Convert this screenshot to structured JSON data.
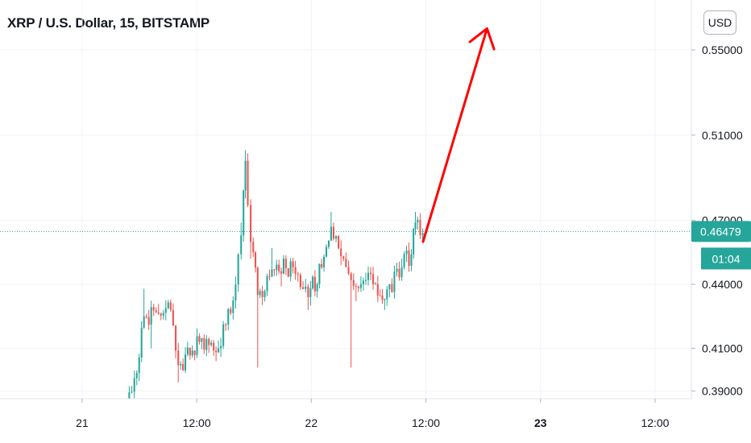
{
  "header": {
    "title": "XRP / U.S. Dollar, 15, BITSTAMP",
    "currency_button": "USD"
  },
  "colors": {
    "up": "#26a69a",
    "down": "#ef5350",
    "arrow": "#ff0000",
    "grid": "#f0f3fa",
    "axis_text": "#131722"
  },
  "chart_data": {
    "type": "candlestick",
    "title": "XRP / U.S. Dollar, 15, BITSTAMP",
    "symbol": "XRP",
    "quote": "U.S. Dollar",
    "interval": "15",
    "exchange": "BITSTAMP",
    "currency": "USD",
    "grid": true,
    "y_axis": {
      "position": "right",
      "ylim": [
        0.385,
        0.57
      ],
      "tick_labels": [
        "0.55000",
        "0.51000",
        "0.47000",
        "0.44000",
        "0.41000",
        "0.39000"
      ],
      "tick_values": [
        0.55,
        0.51,
        0.47,
        0.44,
        0.41,
        0.39
      ]
    },
    "x_axis": {
      "tick_labels": [
        "21",
        "12:00",
        "22",
        "12:00",
        "23",
        "12:00"
      ],
      "tick_values": [
        0,
        12,
        24,
        36,
        48,
        60
      ],
      "xlim": [
        -8.6,
        63.8
      ],
      "unit": "hours since day 21 00:00"
    },
    "last_price": {
      "value": 0.46479,
      "label": "0.46479"
    },
    "countdown": {
      "label": "01:04"
    },
    "segments": [
      {
        "t0": 4.8,
        "t1": 5.6,
        "open": 0.386,
        "close": 0.396,
        "high": 0.398,
        "low": 0.385
      },
      {
        "t0": 5.6,
        "t1": 6.6,
        "open": 0.396,
        "close": 0.425,
        "high": 0.438,
        "low": 0.393
      },
      {
        "t0": 6.6,
        "t1": 9.4,
        "open": 0.425,
        "close": 0.428,
        "high": 0.432,
        "low": 0.41
      },
      {
        "t0": 9.4,
        "t1": 10.2,
        "open": 0.428,
        "close": 0.402,
        "high": 0.429,
        "low": 0.394
      },
      {
        "t0": 10.2,
        "t1": 12.4,
        "open": 0.402,
        "close": 0.413,
        "high": 0.417,
        "low": 0.399
      },
      {
        "t0": 12.4,
        "t1": 14.4,
        "open": 0.413,
        "close": 0.41,
        "high": 0.416,
        "low": 0.404
      },
      {
        "t0": 14.4,
        "t1": 16.2,
        "open": 0.41,
        "close": 0.44,
        "high": 0.443,
        "low": 0.406
      },
      {
        "t0": 16.2,
        "t1": 16.8,
        "open": 0.44,
        "close": 0.463,
        "high": 0.469,
        "low": 0.437
      },
      {
        "t0": 16.8,
        "t1": 17.2,
        "open": 0.463,
        "close": 0.498,
        "high": 0.503,
        "low": 0.46
      },
      {
        "t0": 17.2,
        "t1": 17.8,
        "open": 0.498,
        "close": 0.46,
        "high": 0.501,
        "low": 0.452
      },
      {
        "t0": 17.8,
        "t1": 18.5,
        "open": 0.46,
        "close": 0.435,
        "high": 0.462,
        "low": 0.401
      },
      {
        "t0": 18.5,
        "t1": 20.0,
        "open": 0.435,
        "close": 0.447,
        "high": 0.457,
        "low": 0.432
      },
      {
        "t0": 20.0,
        "t1": 22.2,
        "open": 0.447,
        "close": 0.448,
        "high": 0.452,
        "low": 0.439
      },
      {
        "t0": 22.2,
        "t1": 23.8,
        "open": 0.448,
        "close": 0.434,
        "high": 0.449,
        "low": 0.428
      },
      {
        "t0": 23.8,
        "t1": 25.2,
        "open": 0.434,
        "close": 0.448,
        "high": 0.452,
        "low": 0.43
      },
      {
        "t0": 25.2,
        "t1": 26.2,
        "open": 0.448,
        "close": 0.467,
        "high": 0.474,
        "low": 0.446
      },
      {
        "t0": 26.2,
        "t1": 27.5,
        "open": 0.467,
        "close": 0.452,
        "high": 0.469,
        "low": 0.449
      },
      {
        "t0": 27.5,
        "t1": 28.3,
        "open": 0.452,
        "close": 0.442,
        "high": 0.455,
        "low": 0.401
      },
      {
        "t0": 28.3,
        "t1": 30.6,
        "open": 0.442,
        "close": 0.44,
        "high": 0.447,
        "low": 0.432
      },
      {
        "t0": 30.6,
        "t1": 31.8,
        "open": 0.44,
        "close": 0.433,
        "high": 0.442,
        "low": 0.428
      },
      {
        "t0": 31.8,
        "t1": 33.6,
        "open": 0.433,
        "close": 0.448,
        "high": 0.452,
        "low": 0.43
      },
      {
        "t0": 33.6,
        "t1": 34.6,
        "open": 0.448,
        "close": 0.454,
        "high": 0.457,
        "low": 0.45
      },
      {
        "t0": 34.6,
        "t1": 35.0,
        "open": 0.454,
        "close": 0.469,
        "high": 0.474,
        "low": 0.452
      },
      {
        "t0": 35.0,
        "t1": 35.8,
        "open": 0.469,
        "close": 0.464,
        "high": 0.472,
        "low": 0.461
      }
    ],
    "annotations": [
      {
        "type": "arrow",
        "color": "#ff0000",
        "from": {
          "t": 35.7,
          "price": 0.46
        },
        "to": {
          "t": 42.4,
          "price": 0.56
        }
      }
    ]
  }
}
